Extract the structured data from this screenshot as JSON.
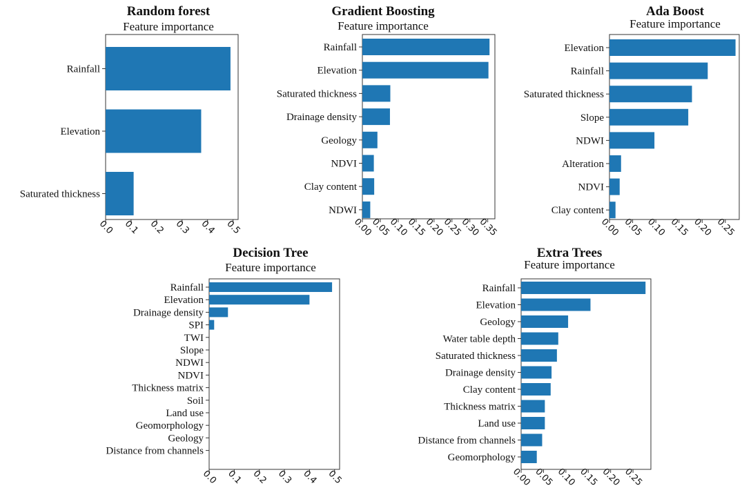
{
  "chart_data": [
    {
      "type": "bar",
      "orientation": "horizontal",
      "title": "Random forest",
      "subtitle": "Feature importance",
      "categories": [
        "Rainfall",
        "Elevation",
        "Saturated thickness"
      ],
      "values": [
        0.49,
        0.375,
        0.11
      ],
      "xlim": [
        0,
        0.52
      ],
      "xticks": [
        0.0,
        0.1,
        0.2,
        0.3,
        0.4,
        0.5
      ],
      "xtick_labels": [
        "0.0",
        "0.1",
        "0.2",
        "0.3",
        "0.4",
        "0.5"
      ],
      "bar_color": "#1f77b4"
    },
    {
      "type": "bar",
      "orientation": "horizontal",
      "title": "Gradient Boosting",
      "subtitle": "Feature importance",
      "categories": [
        "Rainfall",
        "Elevation",
        "Saturated thickness",
        "Drainage density",
        "Geology",
        "NDVI",
        "Clay content",
        "NDWI"
      ],
      "values": [
        0.355,
        0.352,
        0.078,
        0.077,
        0.042,
        0.032,
        0.033,
        0.022
      ],
      "xlim": [
        0,
        0.37
      ],
      "xticks": [
        0.0,
        0.05,
        0.1,
        0.15,
        0.2,
        0.25,
        0.3,
        0.35
      ],
      "xtick_labels": [
        "0.00",
        "0.05",
        "0.10",
        "0.15",
        "0.20",
        "0.25",
        "0.30",
        "0.35"
      ],
      "bar_color": "#1f77b4"
    },
    {
      "type": "bar",
      "orientation": "horizontal",
      "title": "Ada Boost",
      "subtitle": "Feature importance",
      "categories": [
        "Elevation",
        "Rainfall",
        "Saturated thickness",
        "Slope",
        "NDWI",
        "Alteration",
        "NDVI",
        "Clay content"
      ],
      "values": [
        0.272,
        0.212,
        0.178,
        0.17,
        0.097,
        0.025,
        0.022,
        0.013
      ],
      "xlim": [
        0,
        0.28
      ],
      "xticks": [
        0.0,
        0.05,
        0.1,
        0.15,
        0.2,
        0.25
      ],
      "xtick_labels": [
        "0.00",
        "0.05",
        "0.10",
        "0.15",
        "0.20",
        "0.25"
      ],
      "bar_color": "#1f77b4"
    },
    {
      "type": "bar",
      "orientation": "horizontal",
      "title": "Decision Tree",
      "subtitle": "Feature importance",
      "categories": [
        "Rainfall",
        "Elevation",
        "Drainage density",
        "SPI",
        "TWI",
        "Slope",
        "NDWI",
        "NDVI",
        "Thickness matrix",
        "Soil",
        "Land use",
        "Geomorphology",
        "Geology",
        "Distance from channels"
      ],
      "values": [
        0.49,
        0.4,
        0.075,
        0.02,
        0,
        0,
        0,
        0,
        0,
        0,
        0,
        0,
        0,
        0
      ],
      "xlim": [
        0,
        0.52
      ],
      "xticks": [
        0.0,
        0.1,
        0.2,
        0.3,
        0.4,
        0.5
      ],
      "xtick_labels": [
        "0.0",
        "0.1",
        "0.2",
        "0.3",
        "0.4",
        "0.5"
      ],
      "bar_color": "#1f77b4"
    },
    {
      "type": "bar",
      "orientation": "horizontal",
      "title": "Extra Trees",
      "subtitle": "Feature importance",
      "categories": [
        "Rainfall",
        "Elevation",
        "Geology",
        "Water table depth",
        "Saturated thickness",
        "Drainage density",
        "Clay content",
        "Thickness matrix",
        "Land use",
        "Distance from channels",
        "Geomorphology"
      ],
      "values": [
        0.278,
        0.155,
        0.105,
        0.083,
        0.08,
        0.068,
        0.066,
        0.053,
        0.053,
        0.047,
        0.035
      ],
      "xlim": [
        0,
        0.29
      ],
      "xticks": [
        0.0,
        0.05,
        0.1,
        0.15,
        0.2,
        0.25
      ],
      "xtick_labels": [
        "0.00",
        "0.05",
        "0.10",
        "0.15",
        "0.20",
        "0.25"
      ],
      "bar_color": "#1f77b4"
    }
  ]
}
